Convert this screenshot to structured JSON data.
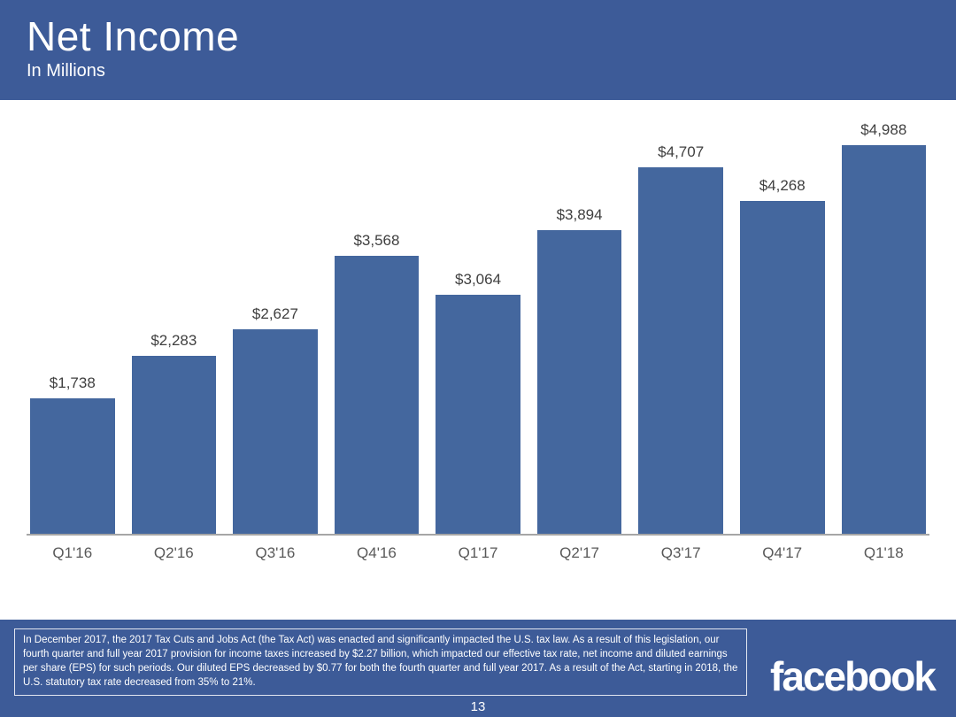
{
  "header": {
    "title": "Net Income",
    "subtitle": "In Millions"
  },
  "chart_data": {
    "type": "bar",
    "title": "Net Income",
    "subtitle": "In Millions",
    "categories": [
      "Q1'16",
      "Q2'16",
      "Q3'16",
      "Q4'16",
      "Q1'17",
      "Q2'17",
      "Q3'17",
      "Q4'17",
      "Q1'18"
    ],
    "values": [
      1738,
      2283,
      2627,
      3568,
      3064,
      3894,
      4707,
      4268,
      4988
    ],
    "value_labels": [
      "$1,738",
      "$2,283",
      "$2,627",
      "$3,568",
      "$3,064",
      "$3,894",
      "$4,707",
      "$4,268",
      "$4,988"
    ],
    "xlabel": "",
    "ylabel": "",
    "ylim": [
      0,
      5000
    ],
    "grid": false,
    "legend": false,
    "bar_color": "#44679e"
  },
  "footer": {
    "footnote": "In December 2017, the 2017 Tax Cuts and Jobs Act (the Tax Act) was enacted and significantly impacted the U.S. tax law. As a result of this legislation, our fourth quarter and full year 2017 provision for income taxes increased by $2.27 billion, which impacted our effective tax rate, net income and diluted earnings per share (EPS) for such periods. Our diluted EPS decreased by $0.77 for both the fourth quarter and full year 2017. As a result of the Act, starting in 2018, the U.S. statutory tax rate decreased from 35% to 21%.",
    "logo": "facebook",
    "page_number": "13"
  },
  "colors": {
    "header_bg": "#3d5b98",
    "footer_bg": "#3d5b98",
    "bar": "#44679e",
    "value_label": "#3f3f3f",
    "tick_label": "#595959",
    "axis_line": "#a6a6a6"
  }
}
